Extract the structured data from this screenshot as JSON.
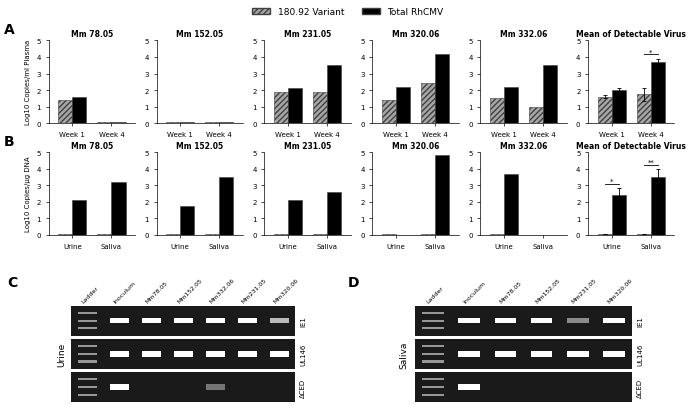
{
  "legend": "upper center",
  "panel_labels": [
    "A",
    "B",
    "C",
    "D"
  ],
  "chart_data": [
    {
      "type": "bar",
      "title": "Mm 78.05",
      "y_label": "Log10 Copies/ml Plasma",
      "categories": [
        "Week 1",
        "Week 4"
      ],
      "series": [
        {
          "name": "180.92 Variant",
          "color": "#a6a6a6",
          "values": [
            1.4,
            0.05
          ]
        },
        {
          "name": "Total RhCMV",
          "color": "#000000",
          "values": [
            1.6,
            0.05
          ]
        }
      ],
      "ylim": [
        0,
        5
      ],
      "yticks": [
        0,
        1,
        2,
        3,
        4,
        5
      ],
      "grid": false
    },
    {
      "type": "bar",
      "title": "Mm 152.05",
      "categories": [
        "Week 1",
        "Week 4"
      ],
      "series": [
        {
          "name": "180.92 Variant",
          "color": "#a6a6a6",
          "values": [
            0.05,
            0.05
          ]
        },
        {
          "name": "Total RhCMV",
          "color": "#000000",
          "values": [
            0.05,
            0.05
          ]
        }
      ],
      "ylim": [
        0,
        5
      ],
      "yticks": [
        0,
        1,
        2,
        3,
        4,
        5
      ],
      "grid": false
    },
    {
      "type": "bar",
      "title": "Mm 231.05",
      "categories": [
        "Week 1",
        "Week 4"
      ],
      "series": [
        {
          "name": "180.92 Variant",
          "color": "#a6a6a6",
          "values": [
            1.9,
            1.9
          ]
        },
        {
          "name": "Total RhCMV",
          "color": "#000000",
          "values": [
            2.1,
            3.5
          ]
        }
      ],
      "ylim": [
        0,
        5
      ],
      "yticks": [
        0,
        1,
        2,
        3,
        4,
        5
      ],
      "grid": false
    },
    {
      "type": "bar",
      "title": "Mm 320.06",
      "categories": [
        "Week 1",
        "Week 4"
      ],
      "series": [
        {
          "name": "180.92 Variant",
          "color": "#a6a6a6",
          "values": [
            1.4,
            2.4
          ]
        },
        {
          "name": "Total RhCMV",
          "color": "#000000",
          "values": [
            2.2,
            4.2
          ]
        }
      ],
      "ylim": [
        0,
        5
      ],
      "yticks": [
        0,
        1,
        2,
        3,
        4,
        5
      ],
      "grid": false
    },
    {
      "type": "bar",
      "title": "Mm 332.06",
      "categories": [
        "Week 1",
        "Week 4"
      ],
      "series": [
        {
          "name": "180.92 Variant",
          "color": "#a6a6a6",
          "values": [
            1.5,
            1.0
          ]
        },
        {
          "name": "Total RhCMV",
          "color": "#000000",
          "values": [
            2.2,
            3.5
          ]
        }
      ],
      "ylim": [
        0,
        5
      ],
      "yticks": [
        0,
        1,
        2,
        3,
        4,
        5
      ],
      "grid": false
    },
    {
      "type": "bar",
      "title": "Mean of Detectable Virus",
      "categories": [
        "Week 1",
        "Week 4"
      ],
      "series": [
        {
          "name": "180.92 Variant",
          "color": "#a6a6a6",
          "values": [
            1.6,
            1.75
          ],
          "errors": [
            0.1,
            0.4
          ]
        },
        {
          "name": "Total RhCMV",
          "color": "#000000",
          "values": [
            2.0,
            3.7
          ],
          "errors": [
            0.15,
            0.2
          ]
        }
      ],
      "annotations": [
        {
          "text": "*",
          "category": "Week 4"
        }
      ],
      "ylim": [
        0,
        5
      ],
      "yticks": [
        0,
        1,
        2,
        3,
        4,
        5
      ],
      "grid": false
    },
    {
      "type": "bar",
      "title": "Mm 78.05",
      "y_label": "Log10 Copies/µg DNA",
      "categories": [
        "Urine",
        "Saliva"
      ],
      "series": [
        {
          "name": "180.92 Variant",
          "color": "#a6a6a6",
          "values": [
            0.05,
            0.05
          ]
        },
        {
          "name": "Total RhCMV",
          "color": "#000000",
          "values": [
            2.1,
            3.2
          ]
        }
      ],
      "ylim": [
        0,
        5
      ],
      "yticks": [
        0,
        1,
        2,
        3,
        4,
        5
      ],
      "grid": false
    },
    {
      "type": "bar",
      "title": "Mm 152.05",
      "categories": [
        "Urine",
        "Saliva"
      ],
      "series": [
        {
          "name": "180.92 Variant",
          "color": "#a6a6a6",
          "values": [
            0.05,
            0.05
          ]
        },
        {
          "name": "Total RhCMV",
          "color": "#000000",
          "values": [
            1.75,
            3.5
          ]
        }
      ],
      "ylim": [
        0,
        5
      ],
      "yticks": [
        0,
        1,
        2,
        3,
        4,
        5
      ],
      "grid": false
    },
    {
      "type": "bar",
      "title": "Mm 231.05",
      "categories": [
        "Urine",
        "Saliva"
      ],
      "series": [
        {
          "name": "180.92 Variant",
          "color": "#a6a6a6",
          "values": [
            0.05,
            0.05
          ]
        },
        {
          "name": "Total RhCMV",
          "color": "#000000",
          "values": [
            2.1,
            2.6
          ]
        }
      ],
      "ylim": [
        0,
        5
      ],
      "yticks": [
        0,
        1,
        2,
        3,
        4,
        5
      ],
      "grid": false
    },
    {
      "type": "bar",
      "title": "Mm 320.06",
      "categories": [
        "Urine",
        "Saliva"
      ],
      "series": [
        {
          "name": "180.92 Variant",
          "color": "#a6a6a6",
          "values": [
            0.05,
            0.05
          ]
        },
        {
          "name": "Total RhCMV",
          "color": "#000000",
          "values": [
            0,
            4.8
          ]
        }
      ],
      "ylim": [
        0,
        5
      ],
      "yticks": [
        0,
        1,
        2,
        3,
        4,
        5
      ],
      "grid": false
    },
    {
      "type": "bar",
      "title": "Mm 332.06",
      "categories": [
        "Urine",
        "Saliva"
      ],
      "series": [
        {
          "name": "180.92 Variant",
          "color": "#a6a6a6",
          "values": [
            0.05,
            0
          ]
        },
        {
          "name": "Total RhCMV",
          "color": "#000000",
          "values": [
            3.7,
            0
          ]
        }
      ],
      "ylim": [
        0,
        5
      ],
      "yticks": [
        0,
        1,
        2,
        3,
        4,
        5
      ],
      "grid": false
    },
    {
      "type": "bar",
      "title": "Mean of Detectable Virus",
      "categories": [
        "Urine",
        "Saliva"
      ],
      "series": [
        {
          "name": "180.92 Variant",
          "color": "#a6a6a6",
          "values": [
            0.05,
            0.05
          ],
          "errors": [
            0,
            0
          ]
        },
        {
          "name": "Total RhCMV",
          "color": "#000000",
          "values": [
            2.4,
            3.5
          ],
          "errors": [
            0.45,
            0.5
          ]
        }
      ],
      "annotations": [
        {
          "text": "*",
          "category": "Urine"
        },
        {
          "text": "**",
          "category": "Saliva"
        }
      ],
      "ylim": [
        0,
        5
      ],
      "yticks": [
        0,
        1,
        2,
        3,
        4,
        5
      ],
      "grid": false
    }
  ],
  "gels": [
    {
      "title": "Urine",
      "lanes": [
        "Ladder",
        "Inoculum",
        "Mm78.05",
        "Mm152.05",
        "Mm332.06",
        "Mm231.05",
        "Mm320.06"
      ],
      "rows": [
        {
          "label": "IE1",
          "bands": [
            1,
            1,
            1,
            1,
            1,
            1,
            0.7
          ]
        },
        {
          "label": "UL146",
          "bands": [
            1,
            1,
            1,
            1,
            1,
            1,
            1
          ]
        },
        {
          "label": "ΔCED",
          "bands": [
            1,
            1,
            0,
            0,
            0.4,
            0,
            0
          ]
        }
      ]
    },
    {
      "title": "Saliva",
      "lanes": [
        "Ladder",
        "Inoculum",
        "Mm78.05",
        "Mm152.05",
        "Mm231.05",
        "Mm320.06"
      ],
      "rows": [
        {
          "label": "IE1",
          "bands": [
            1,
            1,
            1,
            1,
            0.5,
            1
          ]
        },
        {
          "label": "UL146",
          "bands": [
            1,
            1,
            1,
            1,
            1,
            1
          ]
        },
        {
          "label": "ΔCED",
          "bands": [
            1,
            1,
            0,
            0,
            0,
            0
          ]
        }
      ]
    }
  ]
}
